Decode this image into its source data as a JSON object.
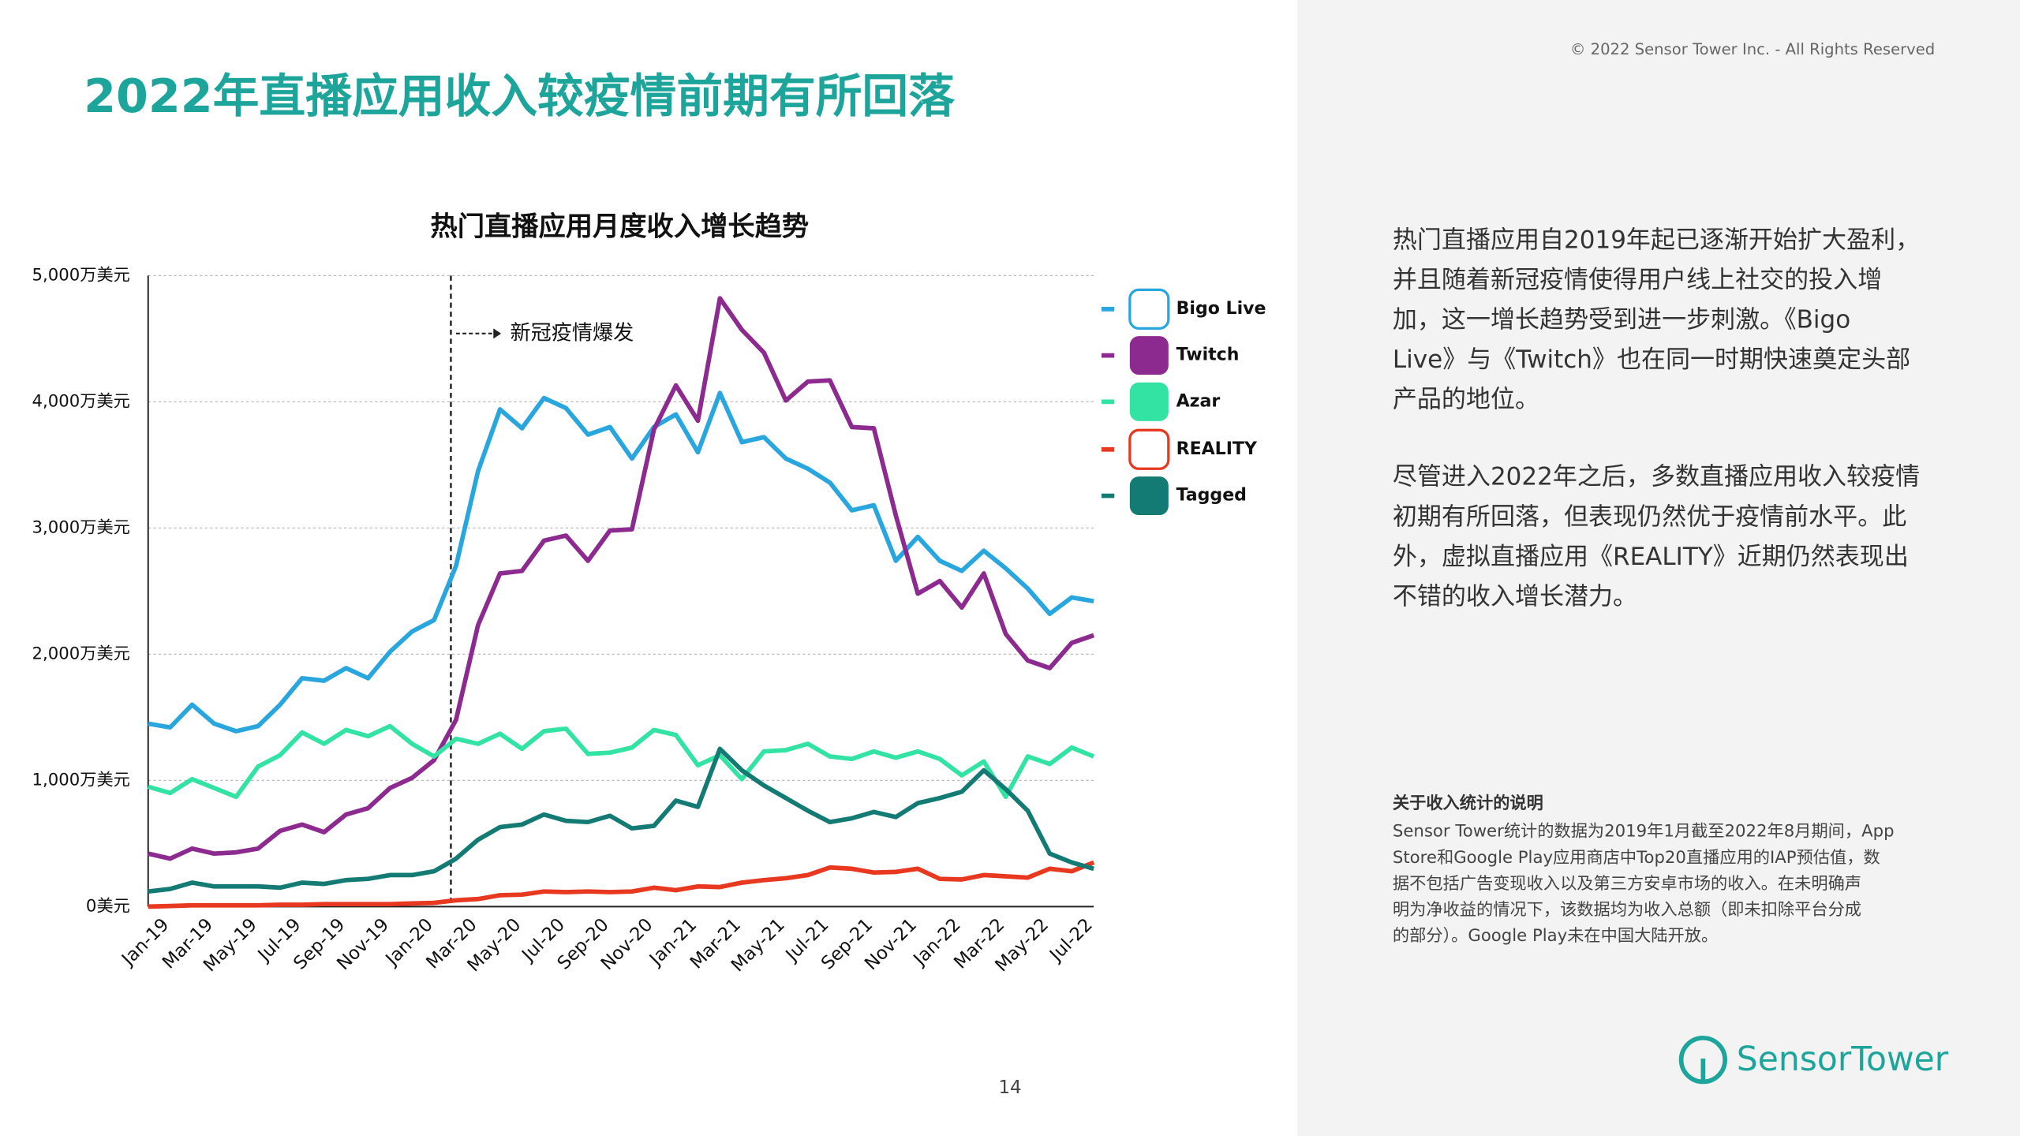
{
  "header": {
    "title": "2022年直播应用收入较疫情前期有所回落",
    "copyright": "© 2022 Sensor Tower Inc. - All Rights Reserved"
  },
  "chart_data": {
    "type": "line",
    "title": "热门直播应用月度收入增长趋势",
    "annotation": "新冠疫情爆发",
    "categories": [
      "Jan-19",
      null,
      "Mar-19",
      null,
      "May-19",
      null,
      "Jul-19",
      null,
      "Sep-19",
      null,
      "Nov-19",
      null,
      "Jan-20",
      null,
      "Mar-20",
      null,
      "May-20",
      null,
      "Jul-20",
      null,
      "Sep-20",
      null,
      "Nov-20",
      null,
      "Jan-21",
      null,
      "Mar-21",
      null,
      "May-21",
      null,
      "Jul-21",
      null,
      "Sep-21",
      null,
      "Nov-21",
      null,
      "Jan-22",
      null,
      "Mar-22",
      null,
      "May-22",
      null,
      "Jul-22",
      null
    ],
    "ylim": [
      0,
      5000
    ],
    "yticks": [
      {
        "value": 0,
        "label": "0美元"
      },
      {
        "value": 1000,
        "label": "1,000万美元"
      },
      {
        "value": 2000,
        "label": "2,000万美元"
      },
      {
        "value": 3000,
        "label": "3,000万美元"
      },
      {
        "value": 4000,
        "label": "4,000万美元"
      },
      {
        "value": 5000,
        "label": "5,000万美元"
      }
    ],
    "grid": true,
    "legend": "right",
    "series": [
      {
        "name": "Bigo Live",
        "color": "#2aa6df",
        "values": [
          1450,
          1420,
          1600,
          1450,
          1390,
          1430,
          1600,
          1810,
          1790,
          1890,
          1810,
          2020,
          2180,
          2270,
          2700,
          3450,
          3940,
          3790,
          4030,
          3950,
          3740,
          3800,
          3550,
          3800,
          3900,
          3600,
          4070,
          3680,
          3720,
          3550,
          3470,
          3360,
          3140,
          3180,
          2740,
          2930,
          2740,
          2660,
          2820,
          2680,
          2520,
          2320,
          2450,
          2420
        ]
      },
      {
        "name": "Twitch",
        "color": "#8c2a8f",
        "values": [
          420,
          380,
          460,
          420,
          430,
          460,
          600,
          650,
          590,
          730,
          780,
          940,
          1020,
          1160,
          1480,
          2230,
          2640,
          2660,
          2900,
          2940,
          2740,
          2980,
          2990,
          3780,
          4130,
          3850,
          4820,
          4570,
          4390,
          4010,
          4160,
          4170,
          3800,
          3790,
          3100,
          2480,
          2580,
          2370,
          2640,
          2160,
          1950,
          1890,
          2090,
          2150
        ]
      },
      {
        "name": "Azar",
        "color": "#33e3a3",
        "values": [
          950,
          900,
          1010,
          940,
          870,
          1110,
          1200,
          1380,
          1290,
          1400,
          1350,
          1430,
          1290,
          1190,
          1330,
          1290,
          1370,
          1250,
          1390,
          1410,
          1210,
          1220,
          1260,
          1400,
          1360,
          1120,
          1200,
          1010,
          1230,
          1240,
          1290,
          1190,
          1170,
          1230,
          1180,
          1230,
          1170,
          1040,
          1150,
          870,
          1190,
          1130,
          1260,
          1190
        ]
      },
      {
        "name": "REALITY",
        "color": "#e8381f",
        "values": [
          0,
          5,
          10,
          10,
          10,
          10,
          15,
          15,
          20,
          20,
          20,
          20,
          25,
          30,
          50,
          60,
          90,
          95,
          120,
          115,
          120,
          115,
          120,
          150,
          130,
          160,
          155,
          190,
          210,
          225,
          250,
          310,
          300,
          270,
          275,
          300,
          220,
          215,
          250,
          240,
          230,
          300,
          280,
          350
        ]
      },
      {
        "name": "Tagged",
        "color": "#147b74",
        "values": [
          120,
          140,
          190,
          160,
          160,
          160,
          150,
          190,
          180,
          210,
          220,
          250,
          250,
          280,
          380,
          530,
          630,
          650,
          730,
          680,
          670,
          720,
          620,
          640,
          840,
          790,
          1250,
          1080,
          960,
          860,
          760,
          670,
          700,
          750,
          710,
          820,
          860,
          910,
          1080,
          930,
          760,
          420,
          350,
          300
        ]
      }
    ]
  },
  "sidebar": {
    "paragraphs": [
      [
        "热门直播应用自2019年起已逐渐开始扩大盈利，",
        "并且随着新冠疫情使得用户线上社交的投入增",
        "加，这一增长趋势受到进一步刺激。《Bigo",
        "Live》与《Twitch》也在同一时期快速奠定头部",
        "产品的地位。"
      ],
      [
        "尽管进入2022年之后，多数直播应用收入较疫情",
        "初期有所回落，但表现仍然优于疫情前水平。此",
        "外，虚拟直播应用《REALITY》近期仍然表现出",
        "不错的收入增长潜力。"
      ]
    ],
    "note_title": "关于收入统计的说明",
    "note_lines": [
      "Sensor Tower统计的数据为2019年1月截至2022年8月期间，App",
      "Store和Google Play应用商店中Top20直播应用的IAP预估值，数",
      "据不包括广告变现收入以及第三方安卓市场的收入。在未明确声",
      "明为净收益的情况下，该数据均为收入总额（即未扣除平台分成",
      "的部分）。Google Play未在中国大陆开放。"
    ],
    "logo": "SensorTower"
  },
  "footer": {
    "page": "14"
  }
}
